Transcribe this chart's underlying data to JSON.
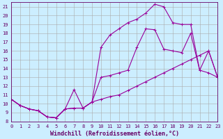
{
  "xlabel": "Windchill (Refroidissement éolien,°C)",
  "background_color": "#cceeff",
  "grid_color": "#aaaaaa",
  "line_color": "#990099",
  "xlim": [
    0,
    23
  ],
  "ylim": [
    8,
    21.5
  ],
  "xticks": [
    0,
    1,
    2,
    3,
    4,
    5,
    6,
    7,
    8,
    9,
    10,
    11,
    12,
    13,
    14,
    15,
    16,
    17,
    18,
    19,
    20,
    21,
    22,
    23
  ],
  "yticks": [
    8,
    9,
    10,
    11,
    12,
    13,
    14,
    15,
    16,
    17,
    18,
    19,
    20,
    21
  ],
  "curve_top_x": [
    0,
    1,
    2,
    3,
    4,
    5,
    6,
    7,
    8,
    9,
    10,
    11,
    12,
    13,
    14,
    15,
    16,
    17,
    18,
    19,
    20,
    21,
    22,
    23
  ],
  "curve_top_y": [
    10.5,
    9.8,
    9.4,
    9.2,
    8.5,
    8.4,
    9.4,
    9.5,
    9.5,
    10.2,
    16.4,
    17.8,
    18.5,
    19.2,
    19.6,
    20.3,
    21.3,
    21.0,
    19.2,
    19.0,
    19.0,
    13.8,
    13.5,
    13.0
  ],
  "curve_mid_x": [
    0,
    1,
    2,
    3,
    4,
    5,
    6,
    7,
    8,
    9,
    10,
    11,
    12,
    13,
    14,
    15,
    16,
    17,
    18,
    19,
    20,
    21,
    22,
    23
  ],
  "curve_mid_y": [
    10.5,
    9.8,
    9.4,
    9.2,
    8.5,
    8.4,
    9.4,
    11.6,
    9.5,
    10.2,
    13.0,
    13.2,
    13.5,
    13.8,
    16.4,
    18.5,
    18.4,
    16.2,
    16.0,
    15.8,
    18.0,
    13.8,
    16.0,
    13.0
  ],
  "curve_bot_x": [
    0,
    1,
    2,
    3,
    4,
    5,
    6,
    7,
    8,
    9,
    10,
    11,
    12,
    13,
    14,
    15,
    16,
    17,
    18,
    19,
    20,
    21,
    22,
    23
  ],
  "curve_bot_y": [
    10.5,
    9.8,
    9.4,
    9.2,
    8.5,
    8.4,
    9.4,
    9.5,
    9.5,
    10.2,
    10.5,
    10.8,
    11.0,
    11.5,
    12.0,
    12.5,
    13.0,
    13.5,
    14.0,
    14.5,
    15.0,
    15.5,
    16.0,
    13.0
  ],
  "markersize": 3,
  "linewidth": 0.8,
  "tick_fontsize": 5.0,
  "label_fontsize": 6.0
}
